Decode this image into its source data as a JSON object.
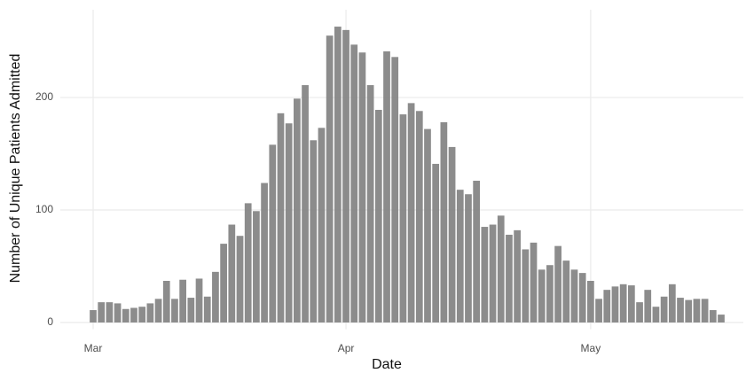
{
  "chart_data": {
    "type": "bar",
    "xlabel": "Date",
    "ylabel": "Number of Unique Patients Admitted",
    "categories": [
      "Mar",
      null,
      null,
      null,
      null,
      null,
      null,
      null,
      null,
      null,
      null,
      null,
      null,
      null,
      null,
      null,
      null,
      null,
      null,
      null,
      null,
      null,
      null,
      null,
      null,
      null,
      null,
      null,
      null,
      null,
      null,
      "Apr",
      null,
      null,
      null,
      null,
      null,
      null,
      null,
      null,
      null,
      null,
      null,
      null,
      null,
      null,
      null,
      null,
      null,
      null,
      null,
      null,
      null,
      null,
      null,
      null,
      null,
      null,
      null,
      null,
      null,
      "May",
      null,
      null,
      null,
      null,
      null,
      null,
      null,
      null,
      null,
      null,
      null,
      null,
      null,
      null,
      null,
      null
    ],
    "values": [
      11,
      18,
      18,
      17,
      12,
      13,
      14,
      17,
      21,
      37,
      21,
      38,
      22,
      39,
      23,
      45,
      70,
      87,
      77,
      106,
      99,
      124,
      158,
      186,
      177,
      199,
      211,
      162,
      173,
      255,
      263,
      260,
      247,
      240,
      211,
      189,
      241,
      236,
      185,
      195,
      188,
      172,
      141,
      178,
      156,
      118,
      114,
      126,
      85,
      87,
      95,
      78,
      82,
      65,
      71,
      47,
      51,
      68,
      55,
      47,
      44,
      37,
      21,
      29,
      32,
      34,
      33,
      18,
      29,
      14,
      23,
      34,
      22,
      20,
      21,
      21,
      11,
      7
    ],
    "color": "#808080",
    "ylim": [
      -6,
      278
    ],
    "yticks": [
      0,
      100,
      200
    ],
    "grid": true
  }
}
